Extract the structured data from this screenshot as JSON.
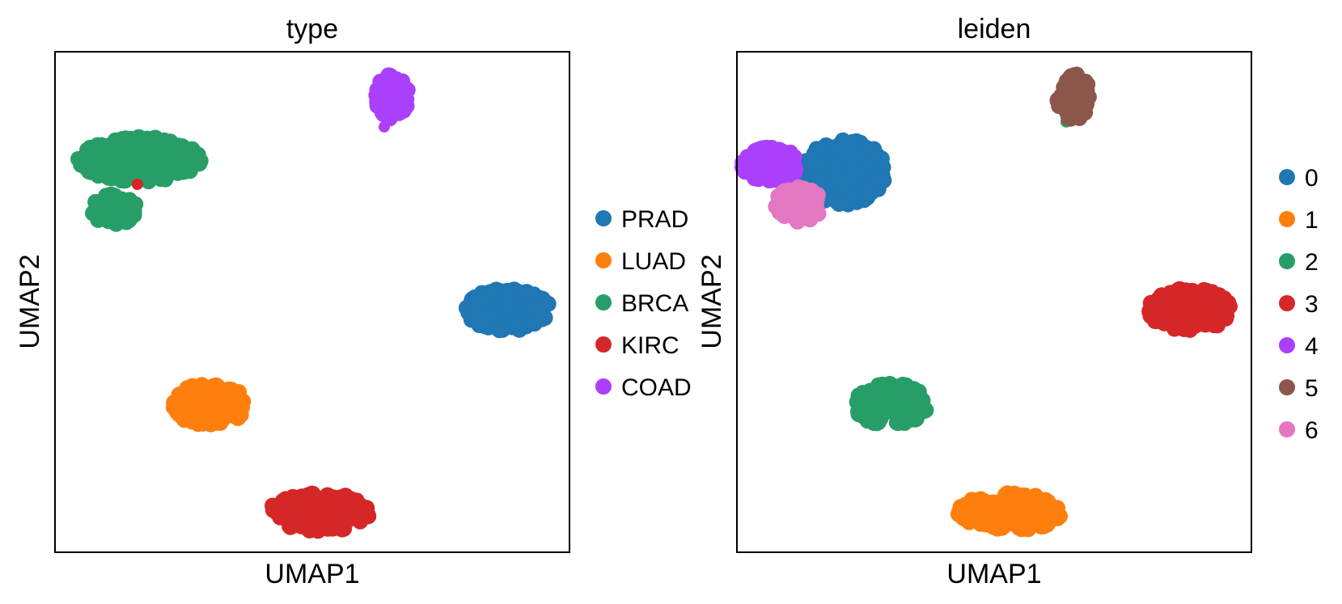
{
  "chart_data": [
    {
      "type": "scatter",
      "title": "type",
      "xlabel": "UMAP1",
      "ylabel": "UMAP2",
      "grid": false,
      "legend_position": "right",
      "series": [
        {
          "name": "PRAD",
          "color": "#1f77b4",
          "clusters": [
            {
              "cx": 8.8,
              "cy": 4.85,
              "rx": 0.82,
              "ry": 0.42,
              "n": 150
            }
          ]
        },
        {
          "name": "LUAD",
          "color": "#ff7f0e",
          "clusters": [
            {
              "cx": 3.0,
              "cy": 2.95,
              "rx": 0.72,
              "ry": 0.42,
              "n": 140
            }
          ],
          "outliers": [
            [
              1.2,
              6.6
            ]
          ]
        },
        {
          "name": "BRCA",
          "color": "#279e68",
          "clusters": [
            {
              "cx": 1.65,
              "cy": 7.85,
              "rx": 1.2,
              "ry": 0.45,
              "n": 320
            },
            {
              "cx": 1.15,
              "cy": 6.85,
              "rx": 0.45,
              "ry": 0.3,
              "n": 80
            }
          ]
        },
        {
          "name": "KIRC",
          "color": "#d62728",
          "clusters": [
            {
              "cx": 5.15,
              "cy": 0.8,
              "rx": 1.0,
              "ry": 0.38,
              "n": 160
            }
          ],
          "outliers": [
            [
              1.6,
              7.35
            ]
          ]
        },
        {
          "name": "COAD",
          "color": "#aa40fc",
          "clusters": [
            {
              "cx": 6.55,
              "cy": 9.1,
              "rx": 0.32,
              "ry": 0.45,
              "n": 80
            }
          ],
          "outliers": [
            [
              6.4,
              8.5
            ]
          ]
        }
      ]
    },
    {
      "type": "scatter",
      "title": "leiden",
      "xlabel": "UMAP1",
      "ylabel": "UMAP2",
      "grid": false,
      "legend_position": "right",
      "series": [
        {
          "name": "0",
          "color": "#1f77b4",
          "clusters": [
            {
              "cx": 2.1,
              "cy": 7.6,
              "rx": 0.8,
              "ry": 0.65,
              "n": 230
            }
          ]
        },
        {
          "name": "1",
          "color": "#ff7f0e",
          "clusters": [
            {
              "cx": 5.3,
              "cy": 0.8,
              "rx": 1.0,
              "ry": 0.38,
              "n": 160
            }
          ]
        },
        {
          "name": "2",
          "color": "#279e68",
          "clusters": [
            {
              "cx": 3.0,
              "cy": 2.95,
              "rx": 0.72,
              "ry": 0.42,
              "n": 140
            }
          ],
          "outliers": [
            [
              6.4,
              8.6
            ]
          ]
        },
        {
          "name": "3",
          "color": "#d62728",
          "clusters": [
            {
              "cx": 8.8,
              "cy": 4.85,
              "rx": 0.82,
              "ry": 0.42,
              "n": 150
            }
          ]
        },
        {
          "name": "4",
          "color": "#aa40fc",
          "clusters": [
            {
              "cx": 0.65,
              "cy": 7.75,
              "rx": 0.55,
              "ry": 0.35,
              "n": 90
            }
          ]
        },
        {
          "name": "5",
          "color": "#8c564b",
          "clusters": [
            {
              "cx": 6.55,
              "cy": 9.1,
              "rx": 0.32,
              "ry": 0.45,
              "n": 80
            }
          ]
        },
        {
          "name": "6",
          "color": "#e377c2",
          "clusters": [
            {
              "cx": 1.2,
              "cy": 6.95,
              "rx": 0.45,
              "ry": 0.35,
              "n": 80
            }
          ]
        }
      ]
    }
  ]
}
